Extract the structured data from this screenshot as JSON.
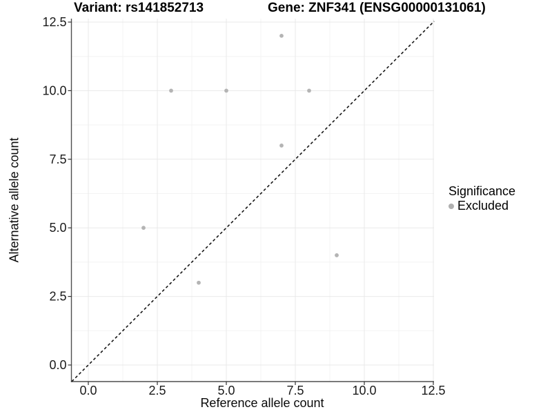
{
  "chart_data": {
    "type": "scatter",
    "title_left": "Variant: rs141852713",
    "title_right": "Gene: ZNF341 (ENSG00000131061)",
    "xlabel": "Reference allele count",
    "ylabel": "Alternative allele count",
    "axes": {
      "xlim": [
        0,
        12.5
      ],
      "ylim": [
        0,
        12.5
      ],
      "breaks": [
        0,
        2.5,
        5,
        7.5,
        10,
        12.5
      ],
      "x_tick_labels": [
        "0.0",
        "2.5",
        "5.0",
        "7.5",
        "10.0",
        "12.5"
      ],
      "y_tick_labels": [
        "0.0",
        "2.5",
        "5.0",
        "7.5",
        "10.0",
        "12.5"
      ],
      "minor_breaks": [
        1.25,
        3.75,
        6.25,
        8.75,
        11.25
      ],
      "grid": "major+minor"
    },
    "series": [
      {
        "name": "Excluded",
        "color": "#b4b4b4",
        "points": [
          {
            "x": 2,
            "y": 5
          },
          {
            "x": 3,
            "y": 10
          },
          {
            "x": 4,
            "y": 3
          },
          {
            "x": 5,
            "y": 10
          },
          {
            "x": 7,
            "y": 8
          },
          {
            "x": 7,
            "y": 12
          },
          {
            "x": 8,
            "y": 10
          },
          {
            "x": 9,
            "y": 4
          }
        ]
      }
    ],
    "reference_line": {
      "description": "identity line y = x",
      "style": "dashed",
      "color": "#151515",
      "from": -0.6,
      "to": 12.53
    },
    "legend": {
      "title": "Significance",
      "position": "right",
      "entries": [
        {
          "label": "Excluded",
          "color": "#b0b0b0"
        }
      ]
    }
  },
  "style": {
    "background": "#ffffff",
    "grid_major": "#e9e9e9",
    "grid_minor": "#f3f3f3",
    "axis_line": "#4d4d4d",
    "tick_mark": "#333333",
    "tick_label_color": "#1a1a1a",
    "point_color": "#b4b4b4",
    "text_color": "#000000"
  }
}
